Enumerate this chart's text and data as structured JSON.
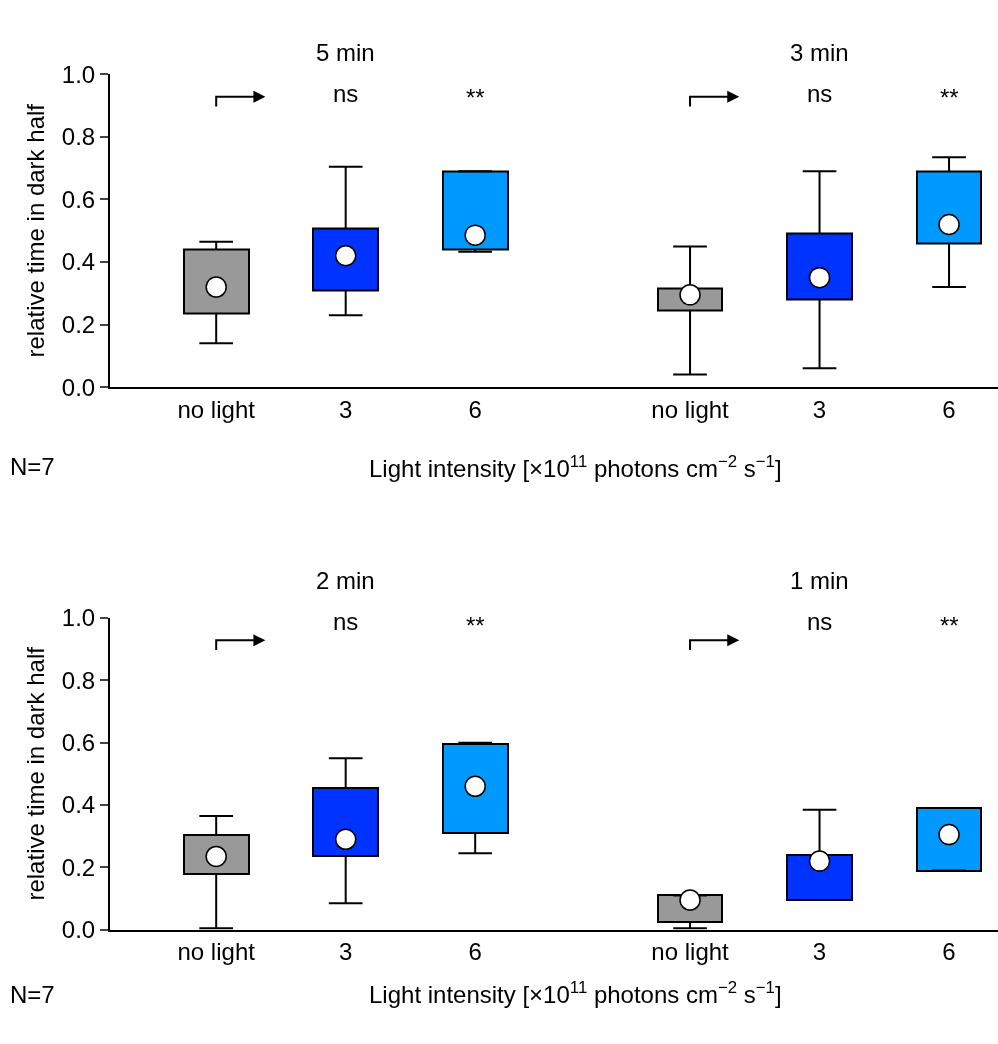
{
  "chart_data": [
    {
      "type": "box",
      "title": "5 min",
      "categories": [
        "no light",
        "3",
        "6"
      ],
      "colors": [
        "#999999",
        "#0033ff",
        "#0099ff"
      ],
      "ylabel": "relative time in dark half",
      "xlabel": "Light intensity [×10$^{11}$ photons cm$^{−2}$ s$^{−1}$]",
      "boxes": [
        {
          "low": 0.14,
          "q1": 0.237,
          "median": 0.32,
          "q3": 0.44,
          "high": 0.465
        },
        {
          "low": 0.23,
          "q1": 0.31,
          "median": 0.42,
          "q3": 0.508,
          "high": 0.705
        },
        {
          "low": 0.433,
          "q1": 0.44,
          "median": 0.486,
          "q3": 0.69,
          "high": 0.69
        }
      ],
      "ylim": [
        0,
        1
      ],
      "yticks": [
        {
          "value": 0,
          "label": "0.0"
        },
        {
          "value": 0.2,
          "label": "0.2"
        },
        {
          "value": 0.4,
          "label": "0.4"
        },
        {
          "value": 0.6,
          "label": "0.6"
        },
        {
          "value": 0.8,
          "label": "0.8"
        },
        {
          "value": 1,
          "label": "1.0"
        }
      ],
      "annotations": [
        "ns",
        "**",
        "N=7"
      ]
    },
    {
      "type": "box",
      "title": "3 min",
      "categories": [
        "no light",
        "3",
        "6"
      ],
      "colors": [
        "#999999",
        "#0033ff",
        "#0099ff"
      ],
      "boxes": [
        {
          "low": 0.04,
          "q1": 0.245,
          "median": 0.295,
          "q3": 0.315,
          "high": 0.45
        },
        {
          "low": 0.06,
          "q1": 0.28,
          "median": 0.35,
          "q3": 0.49,
          "high": 0.69
        },
        {
          "low": 0.32,
          "q1": 0.46,
          "median": 0.52,
          "q3": 0.69,
          "high": 0.735
        }
      ],
      "ylim": [
        0,
        1
      ],
      "tick_labels": "x",
      "annotations": [
        "ns",
        "**"
      ]
    },
    {
      "type": "box",
      "title": "2 min",
      "categories": [
        "no light",
        "3",
        "6"
      ],
      "colors": [
        "#999999",
        "#0033ff",
        "#0099ff"
      ],
      "ylabel": "relative time in dark half",
      "xlabel": "Light intensity [×10$^{11}$ photons cm$^{−2}$ s$^{−1}$]",
      "boxes": [
        {
          "low": 0.005,
          "q1": 0.18,
          "median": 0.235,
          "q3": 0.305,
          "high": 0.365
        },
        {
          "low": 0.085,
          "q1": 0.235,
          "median": 0.29,
          "q3": 0.455,
          "high": 0.55
        },
        {
          "low": 0.245,
          "q1": 0.31,
          "median": 0.46,
          "q3": 0.595,
          "high": 0.6
        }
      ],
      "ylim": [
        0,
        1
      ],
      "yticks": [
        {
          "value": 0,
          "label": "0.0"
        },
        {
          "value": 0.2,
          "label": "0.2"
        },
        {
          "value": 0.4,
          "label": "0.4"
        },
        {
          "value": 0.6,
          "label": "0.6"
        },
        {
          "value": 0.8,
          "label": "0.8"
        },
        {
          "value": 1,
          "label": "1.0"
        }
      ],
      "annotations": [
        "ns",
        "**",
        "N=7"
      ]
    },
    {
      "type": "box",
      "title": "1 min",
      "categories": [
        "no light",
        "3",
        "6"
      ],
      "colors": [
        "#999999",
        "#0033ff",
        "#0099ff"
      ],
      "boxes": [
        {
          "low": 0.005,
          "q1": 0.025,
          "median": 0.095,
          "q3": 0.11,
          "high": 0.11
        },
        {
          "low": 0.095,
          "q1": 0.095,
          "median": 0.22,
          "q3": 0.24,
          "high": 0.385
        },
        {
          "low": 0.19,
          "q1": 0.19,
          "median": 0.305,
          "q3": 0.39,
          "high": 0.39
        }
      ],
      "ylim": [
        0,
        1
      ],
      "tick_labels": "x",
      "annotations": [
        "ns",
        "**"
      ]
    }
  ]
}
